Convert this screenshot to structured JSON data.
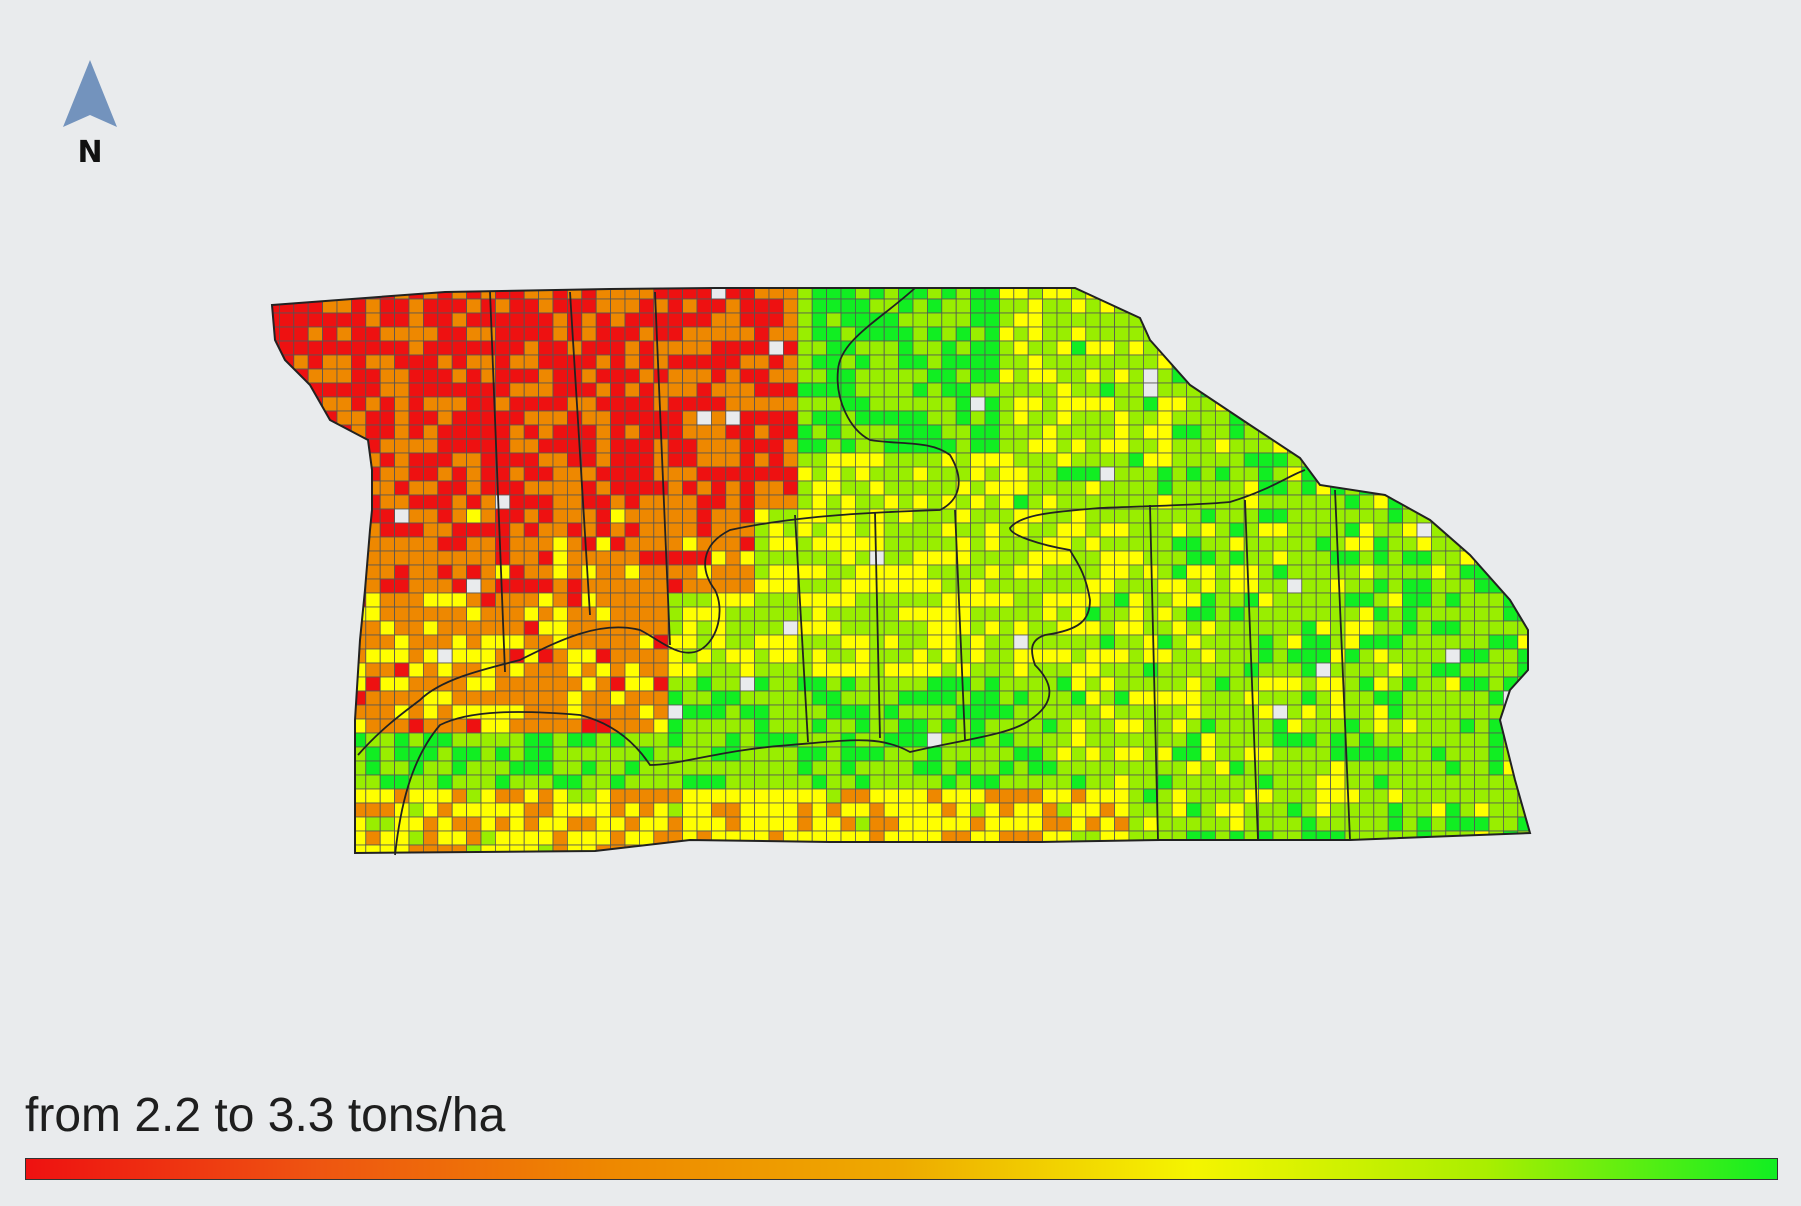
{
  "north_arrow": {
    "label": "N",
    "color": "#7393bd"
  },
  "legend": {
    "label": "from 2.2 to 3.3 tons/ha",
    "min": 2.2,
    "max": 3.3,
    "unit": "tons/ha",
    "colors": [
      "#ee1111",
      "#ee5511",
      "#ee8800",
      "#eeaa00",
      "#f5f500",
      "#aaee00",
      "#11ee22"
    ]
  },
  "map": {
    "field_fill_missing": "#e9ebed",
    "cell_palette": [
      "#ee1111",
      "#ee8800",
      "#ffff00",
      "#99ee00",
      "#11ee22"
    ],
    "grid_color": "#555555",
    "outline_color": "#222222"
  }
}
